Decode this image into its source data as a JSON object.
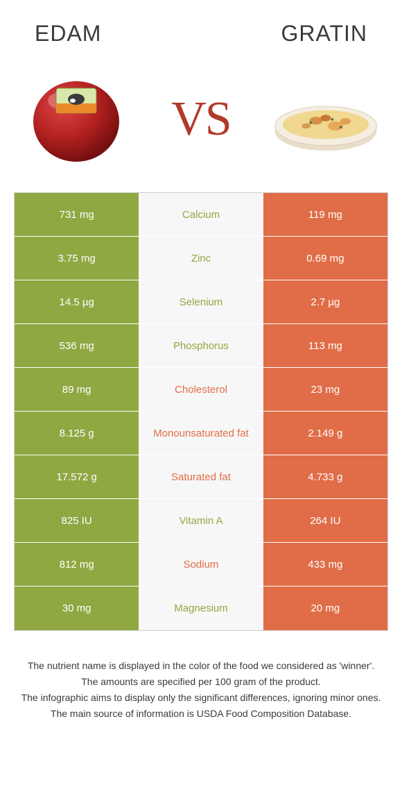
{
  "header": {
    "left_title": "EDAM",
    "right_title": "GRATIN",
    "vs_label": "VS"
  },
  "colors": {
    "left_food": "#8fa842",
    "right_food": "#e06d47",
    "mid_bg": "#f7f7f7",
    "border": "#d0d0d0",
    "vs_text": "#b23a2a",
    "edam_wax": "#a81e1e",
    "edam_highlight": "#d63838",
    "gratin_dish": "#f0e8dc",
    "gratin_top": "#e8c070"
  },
  "rows": [
    {
      "left": "731 mg",
      "mid": "Calcium",
      "right": "119 mg",
      "winner": "left"
    },
    {
      "left": "3.75 mg",
      "mid": "Zinc",
      "right": "0.69 mg",
      "winner": "left"
    },
    {
      "left": "14.5 µg",
      "mid": "Selenium",
      "right": "2.7 µg",
      "winner": "left"
    },
    {
      "left": "536 mg",
      "mid": "Phosphorus",
      "right": "113 mg",
      "winner": "left"
    },
    {
      "left": "89 mg",
      "mid": "Cholesterol",
      "right": "23 mg",
      "winner": "right"
    },
    {
      "left": "8.125 g",
      "mid": "Monounsaturated fat",
      "right": "2.149 g",
      "winner": "right"
    },
    {
      "left": "17.572 g",
      "mid": "Saturated fat",
      "right": "4.733 g",
      "winner": "right"
    },
    {
      "left": "825 IU",
      "mid": "Vitamin A",
      "right": "264 IU",
      "winner": "left"
    },
    {
      "left": "812 mg",
      "mid": "Sodium",
      "right": "433 mg",
      "winner": "right"
    },
    {
      "left": "30 mg",
      "mid": "Magnesium",
      "right": "20 mg",
      "winner": "left"
    }
  ],
  "footer": {
    "line1": "The nutrient name is displayed in the color of the food we considered as 'winner'.",
    "line2": "The amounts are specified per 100 gram of the product.",
    "line3": "The infographic aims to display only the significant differences, ignoring minor ones.",
    "line4": "The main source of information is USDA Food Composition Database."
  }
}
